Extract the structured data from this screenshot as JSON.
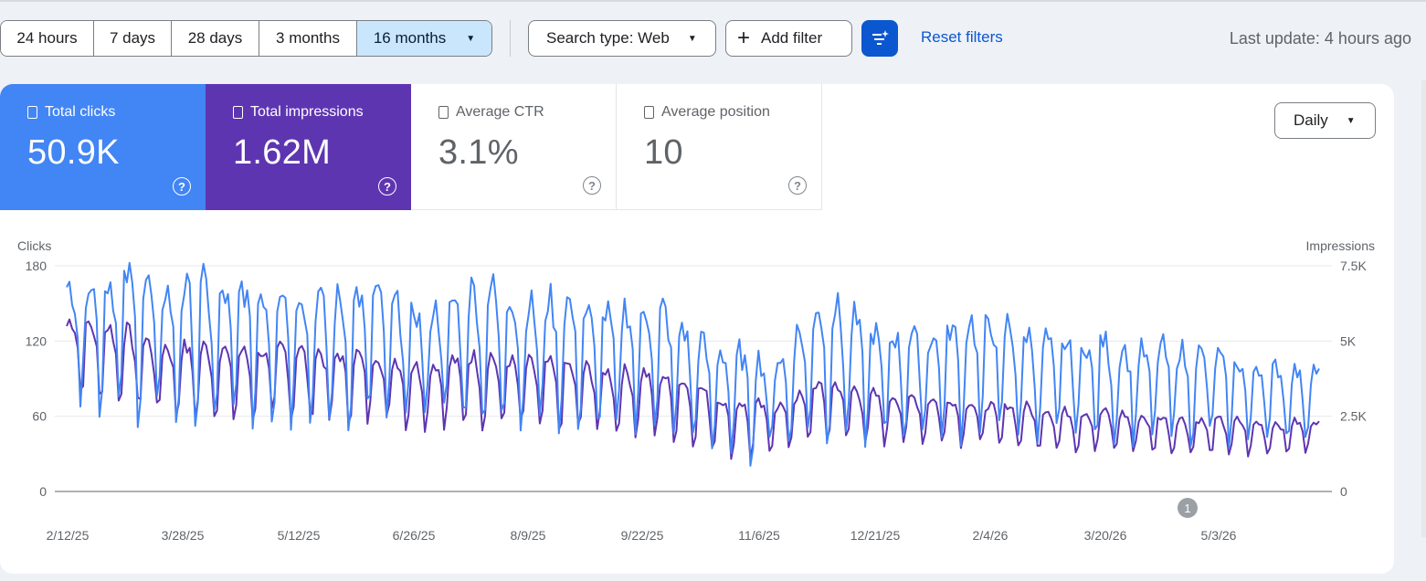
{
  "toolbar": {
    "ranges": [
      {
        "label": "24 hours",
        "active": false
      },
      {
        "label": "7 days",
        "active": false
      },
      {
        "label": "28 days",
        "active": false
      },
      {
        "label": "3 months",
        "active": false
      },
      {
        "label": "16 months",
        "active": true
      }
    ],
    "search_type": "Search type: Web",
    "add_filter": "Add filter",
    "reset_filters": "Reset filters",
    "last_update": "Last update: 4 hours ago"
  },
  "metrics": {
    "clicks": {
      "label": "Total clicks",
      "value": "50.9K",
      "color": "#4285f4"
    },
    "impressions": {
      "label": "Total impressions",
      "value": "1.62M",
      "color": "#5e35b1"
    },
    "ctr": {
      "label": "Average CTR",
      "value": "3.1%"
    },
    "position": {
      "label": "Average position",
      "value": "10"
    }
  },
  "granularity": "Daily",
  "chart_data": {
    "type": "line",
    "ylabel_left": "Clicks",
    "ylabel_right": "Impressions",
    "left_ticks": [
      "180",
      "120",
      "60",
      "0"
    ],
    "right_ticks": [
      "7.5K",
      "5K",
      "2.5K",
      "0"
    ],
    "ylim_left": [
      0,
      180
    ],
    "ylim_right": [
      0,
      7500
    ],
    "x_ticks": [
      "2/12/25",
      "3/28/25",
      "5/12/25",
      "6/26/25",
      "8/9/25",
      "9/22/25",
      "11/6/25",
      "12/21/25",
      "2/4/26",
      "3/20/26",
      "5/3/26"
    ],
    "grid": true,
    "annotation": {
      "label": "1",
      "near": "4/20/26"
    },
    "series": [
      {
        "name": "Clicks",
        "axis": "left",
        "color": "#4285f4",
        "weekly_peak": [
          162,
          172,
          170,
          174,
          165,
          160,
          168,
          158,
          165,
          160,
          168,
          160,
          152,
          158,
          162,
          150,
          145,
          148,
          158,
          166,
          160,
          150,
          155,
          152,
          140,
          145,
          150,
          148,
          132,
          118,
          112,
          110,
          100,
          122,
          150,
          148,
          135,
          125,
          128,
          122,
          130,
          138,
          140,
          132,
          125,
          120,
          118,
          122,
          115,
          112,
          118,
          112,
          110,
          105,
          102,
          100,
          96,
          100
        ],
        "weekly_low": [
          76,
          72,
          70,
          68,
          62,
          60,
          58,
          58,
          60,
          64,
          62,
          60,
          58,
          62,
          64,
          60,
          58,
          62,
          60,
          58,
          56,
          55,
          58,
          60,
          55,
          52,
          50,
          48,
          45,
          38,
          32,
          28,
          35,
          42,
          48,
          50,
          46,
          44,
          48,
          52,
          50,
          48,
          46,
          48,
          44,
          46,
          48,
          46,
          44,
          46,
          42,
          44,
          45,
          42,
          40,
          44,
          46,
          48
        ]
      },
      {
        "name": "Impressions",
        "axis": "right",
        "color": "#5e35b1",
        "weekly_peak": [
          5700,
          5600,
          5500,
          5300,
          4900,
          4800,
          4850,
          4800,
          4700,
          4700,
          4900,
          4750,
          4600,
          4600,
          4600,
          4400,
          4200,
          4300,
          4500,
          4600,
          4400,
          4300,
          4300,
          4200,
          4100,
          4000,
          4000,
          3900,
          3700,
          3400,
          3000,
          3000,
          2800,
          3100,
          3600,
          3600,
          3400,
          3200,
          3200,
          3100,
          3100,
          3000,
          2900,
          2900,
          2800,
          2700,
          2650,
          2700,
          2600,
          2500,
          2500,
          2400,
          2400,
          2400,
          2300,
          2300,
          2350,
          2400
        ],
        "weekly_low": [
          3700,
          3200,
          3100,
          2900,
          2700,
          2600,
          2600,
          2500,
          2500,
          2500,
          2500,
          2450,
          2400,
          2400,
          2400,
          2300,
          2200,
          2300,
          2300,
          2200,
          2200,
          2200,
          2100,
          2100,
          2100,
          2000,
          1950,
          1900,
          1800,
          1600,
          1300,
          1200,
          1400,
          1600,
          1800,
          1800,
          1700,
          1650,
          1700,
          1700,
          1650,
          1600,
          1550,
          1500,
          1450,
          1450,
          1400,
          1400,
          1350,
          1350,
          1300,
          1300,
          1300,
          1250,
          1250,
          1300,
          1300,
          1350
        ]
      }
    ]
  }
}
